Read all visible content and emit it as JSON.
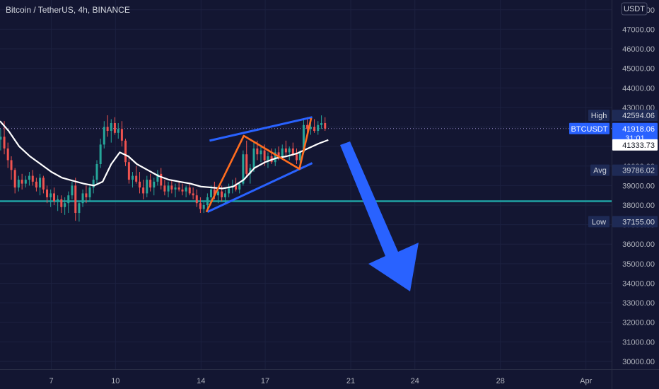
{
  "header": {
    "title": "Bitcoin / TetherUS, 4h, BINANCE",
    "currency": "USDT"
  },
  "chart_data": {
    "type": "candlestick",
    "symbol": "BTCUSDT",
    "interval": "4h",
    "exchange": "BINANCE",
    "ylim": [
      29600,
      48500
    ],
    "y_ticks": [
      "30000.00",
      "31000.00",
      "32000.00",
      "33000.00",
      "34000.00",
      "35000.00",
      "36000.00",
      "37000.00",
      "38000.00",
      "39000.00",
      "40000.00",
      "41000.00",
      "42000.00",
      "43000.00",
      "44000.00",
      "45000.00",
      "46000.00",
      "47000.00",
      "48000.00"
    ],
    "x_ticks": [
      "7",
      "10",
      "14",
      "17",
      "21",
      "24",
      "28",
      "Apr"
    ],
    "x_tick_days": [
      7,
      10,
      14,
      17,
      21,
      24,
      28,
      32
    ],
    "x_range_days": [
      4.6,
      33.2
    ],
    "price_labels": {
      "high": {
        "label": "High",
        "value": "42594.06"
      },
      "last": {
        "label": "BTCUSDT",
        "value": "41918.06",
        "countdown": "31:01"
      },
      "ma": {
        "value": "41333.73"
      },
      "avg": {
        "label": "Avg",
        "value": "39786.02"
      },
      "low": {
        "label": "Low",
        "value": "37155.00"
      }
    },
    "last_price": 41918.06,
    "support_level": 38200,
    "candles": [
      {
        "d": 4.63,
        "o": 41350,
        "h": 41900,
        "l": 40800,
        "c": 41500
      },
      {
        "d": 4.8,
        "o": 41500,
        "h": 42300,
        "l": 40600,
        "c": 40900
      },
      {
        "d": 4.97,
        "o": 40900,
        "h": 41200,
        "l": 39900,
        "c": 40300
      },
      {
        "d": 5.13,
        "o": 40300,
        "h": 40500,
        "l": 39300,
        "c": 39800
      },
      {
        "d": 5.3,
        "o": 39800,
        "h": 39900,
        "l": 38600,
        "c": 38900
      },
      {
        "d": 5.47,
        "o": 38900,
        "h": 39500,
        "l": 38700,
        "c": 39300
      },
      {
        "d": 5.63,
        "o": 39300,
        "h": 39600,
        "l": 38800,
        "c": 39100
      },
      {
        "d": 5.8,
        "o": 39100,
        "h": 39500,
        "l": 38900,
        "c": 39300
      },
      {
        "d": 5.97,
        "o": 39300,
        "h": 39700,
        "l": 39000,
        "c": 39500
      },
      {
        "d": 6.13,
        "o": 39500,
        "h": 39800,
        "l": 39000,
        "c": 39200
      },
      {
        "d": 6.3,
        "o": 39200,
        "h": 39400,
        "l": 38700,
        "c": 38900
      },
      {
        "d": 6.47,
        "o": 38900,
        "h": 39600,
        "l": 38500,
        "c": 39400
      },
      {
        "d": 6.63,
        "o": 39400,
        "h": 39500,
        "l": 38600,
        "c": 38800
      },
      {
        "d": 6.8,
        "o": 38800,
        "h": 39000,
        "l": 38100,
        "c": 38400
      },
      {
        "d": 6.97,
        "o": 38400,
        "h": 38800,
        "l": 37900,
        "c": 38600
      },
      {
        "d": 7.13,
        "o": 38600,
        "h": 38900,
        "l": 38000,
        "c": 38200
      },
      {
        "d": 7.3,
        "o": 38200,
        "h": 38500,
        "l": 37700,
        "c": 38300
      },
      {
        "d": 7.47,
        "o": 38300,
        "h": 38500,
        "l": 37600,
        "c": 37900
      },
      {
        "d": 7.63,
        "o": 37900,
        "h": 38400,
        "l": 37500,
        "c": 38100
      },
      {
        "d": 7.8,
        "o": 38100,
        "h": 38700,
        "l": 37600,
        "c": 38500
      },
      {
        "d": 7.97,
        "o": 38500,
        "h": 39200,
        "l": 38300,
        "c": 39000
      },
      {
        "d": 8.13,
        "o": 39000,
        "h": 39400,
        "l": 37200,
        "c": 37600
      },
      {
        "d": 8.3,
        "o": 37600,
        "h": 38200,
        "l": 37155,
        "c": 38100
      },
      {
        "d": 8.47,
        "o": 38100,
        "h": 38800,
        "l": 37900,
        "c": 38600
      },
      {
        "d": 8.63,
        "o": 38600,
        "h": 39000,
        "l": 38100,
        "c": 38400
      },
      {
        "d": 8.8,
        "o": 38400,
        "h": 39100,
        "l": 38200,
        "c": 38900
      },
      {
        "d": 8.97,
        "o": 38900,
        "h": 39500,
        "l": 38600,
        "c": 39300
      },
      {
        "d": 9.13,
        "o": 39300,
        "h": 40300,
        "l": 39100,
        "c": 40100
      },
      {
        "d": 9.3,
        "o": 40100,
        "h": 41400,
        "l": 39900,
        "c": 41100
      },
      {
        "d": 9.47,
        "o": 41100,
        "h": 42300,
        "l": 40900,
        "c": 42000
      },
      {
        "d": 9.63,
        "o": 42000,
        "h": 42600,
        "l": 41500,
        "c": 41800
      },
      {
        "d": 9.8,
        "o": 41800,
        "h": 42400,
        "l": 41200,
        "c": 42200
      },
      {
        "d": 9.97,
        "o": 42200,
        "h": 42500,
        "l": 41600,
        "c": 41700
      },
      {
        "d": 10.13,
        "o": 41700,
        "h": 42200,
        "l": 41400,
        "c": 41900
      },
      {
        "d": 10.3,
        "o": 41900,
        "h": 42300,
        "l": 41000,
        "c": 41300
      },
      {
        "d": 10.47,
        "o": 41300,
        "h": 41400,
        "l": 40000,
        "c": 40200
      },
      {
        "d": 10.63,
        "o": 40200,
        "h": 40400,
        "l": 39100,
        "c": 39300
      },
      {
        "d": 10.8,
        "o": 39300,
        "h": 39700,
        "l": 38900,
        "c": 39500
      },
      {
        "d": 10.97,
        "o": 39500,
        "h": 40000,
        "l": 39100,
        "c": 39200
      },
      {
        "d": 11.13,
        "o": 39200,
        "h": 39700,
        "l": 38600,
        "c": 38900
      },
      {
        "d": 11.3,
        "o": 38900,
        "h": 39300,
        "l": 38300,
        "c": 38600
      },
      {
        "d": 11.47,
        "o": 38600,
        "h": 39500,
        "l": 38400,
        "c": 39300
      },
      {
        "d": 11.63,
        "o": 39300,
        "h": 39600,
        "l": 38700,
        "c": 38900
      },
      {
        "d": 11.8,
        "o": 38900,
        "h": 39400,
        "l": 38500,
        "c": 39200
      },
      {
        "d": 11.97,
        "o": 39200,
        "h": 39800,
        "l": 39000,
        "c": 39600
      },
      {
        "d": 12.13,
        "o": 39600,
        "h": 39900,
        "l": 38800,
        "c": 39000
      },
      {
        "d": 12.3,
        "o": 39000,
        "h": 39300,
        "l": 38500,
        "c": 38700
      },
      {
        "d": 12.47,
        "o": 38700,
        "h": 39200,
        "l": 38400,
        "c": 39000
      },
      {
        "d": 12.63,
        "o": 39000,
        "h": 39300,
        "l": 38600,
        "c": 38800
      },
      {
        "d": 12.8,
        "o": 38800,
        "h": 39100,
        "l": 38400,
        "c": 38900
      },
      {
        "d": 12.97,
        "o": 38900,
        "h": 39200,
        "l": 38700,
        "c": 38800
      },
      {
        "d": 13.13,
        "o": 38800,
        "h": 39100,
        "l": 38500,
        "c": 38700
      },
      {
        "d": 13.3,
        "o": 38700,
        "h": 39000,
        "l": 38400,
        "c": 38900
      },
      {
        "d": 13.47,
        "o": 38900,
        "h": 39100,
        "l": 38500,
        "c": 38600
      },
      {
        "d": 13.63,
        "o": 38600,
        "h": 38900,
        "l": 38300,
        "c": 38500
      },
      {
        "d": 13.8,
        "o": 38500,
        "h": 38800,
        "l": 37900,
        "c": 38100
      },
      {
        "d": 13.97,
        "o": 38100,
        "h": 38400,
        "l": 37600,
        "c": 37800
      },
      {
        "d": 14.13,
        "o": 37800,
        "h": 38200,
        "l": 37600,
        "c": 38000
      },
      {
        "d": 14.3,
        "o": 38000,
        "h": 38600,
        "l": 37800,
        "c": 38400
      },
      {
        "d": 14.47,
        "o": 38400,
        "h": 39000,
        "l": 38200,
        "c": 38800
      },
      {
        "d": 14.63,
        "o": 38800,
        "h": 39200,
        "l": 38300,
        "c": 38500
      },
      {
        "d": 14.8,
        "o": 38500,
        "h": 38900,
        "l": 38100,
        "c": 38700
      },
      {
        "d": 14.97,
        "o": 38700,
        "h": 39000,
        "l": 38200,
        "c": 38400
      },
      {
        "d": 15.13,
        "o": 38400,
        "h": 38800,
        "l": 38100,
        "c": 38600
      },
      {
        "d": 15.3,
        "o": 38600,
        "h": 39100,
        "l": 38400,
        "c": 38900
      },
      {
        "d": 15.47,
        "o": 38900,
        "h": 39300,
        "l": 38600,
        "c": 39000
      },
      {
        "d": 15.63,
        "o": 39000,
        "h": 39400,
        "l": 38700,
        "c": 38800
      },
      {
        "d": 15.8,
        "o": 38800,
        "h": 39200,
        "l": 38600,
        "c": 39100
      },
      {
        "d": 15.97,
        "o": 39100,
        "h": 40800,
        "l": 39000,
        "c": 40600
      },
      {
        "d": 16.13,
        "o": 40600,
        "h": 41300,
        "l": 39400,
        "c": 39600
      },
      {
        "d": 16.3,
        "o": 39600,
        "h": 40100,
        "l": 39100,
        "c": 39900
      },
      {
        "d": 16.47,
        "o": 39900,
        "h": 41200,
        "l": 39700,
        "c": 40900
      },
      {
        "d": 16.63,
        "o": 40900,
        "h": 41300,
        "l": 40300,
        "c": 40600
      },
      {
        "d": 16.8,
        "o": 40600,
        "h": 41000,
        "l": 40200,
        "c": 40800
      },
      {
        "d": 16.97,
        "o": 40800,
        "h": 41100,
        "l": 40000,
        "c": 40300
      },
      {
        "d": 17.13,
        "o": 40300,
        "h": 40700,
        "l": 39900,
        "c": 40500
      },
      {
        "d": 17.3,
        "o": 40500,
        "h": 40900,
        "l": 40100,
        "c": 40200
      },
      {
        "d": 17.47,
        "o": 40200,
        "h": 40900,
        "l": 40000,
        "c": 40700
      },
      {
        "d": 17.63,
        "o": 40700,
        "h": 41000,
        "l": 40300,
        "c": 40500
      },
      {
        "d": 17.8,
        "o": 40500,
        "h": 41100,
        "l": 40400,
        "c": 40900
      },
      {
        "d": 17.97,
        "o": 40900,
        "h": 41300,
        "l": 40500,
        "c": 40700
      },
      {
        "d": 18.13,
        "o": 40700,
        "h": 41000,
        "l": 40300,
        "c": 40900
      },
      {
        "d": 18.3,
        "o": 40900,
        "h": 41200,
        "l": 40500,
        "c": 40600
      },
      {
        "d": 18.47,
        "o": 40600,
        "h": 40900,
        "l": 40100,
        "c": 40300
      },
      {
        "d": 18.63,
        "o": 40300,
        "h": 40800,
        "l": 40100,
        "c": 40700
      },
      {
        "d": 18.8,
        "o": 40700,
        "h": 42400,
        "l": 40600,
        "c": 42100
      },
      {
        "d": 18.97,
        "o": 42100,
        "h": 42500,
        "l": 41700,
        "c": 41900
      },
      {
        "d": 19.13,
        "o": 41900,
        "h": 42300,
        "l": 41600,
        "c": 42000
      },
      {
        "d": 19.3,
        "o": 42000,
        "h": 42400,
        "l": 41700,
        "c": 41800
      },
      {
        "d": 19.47,
        "o": 41800,
        "h": 42300,
        "l": 41600,
        "c": 42100
      },
      {
        "d": 19.63,
        "o": 42100,
        "h": 42594,
        "l": 41900,
        "c": 42200
      },
      {
        "d": 19.8,
        "o": 42200,
        "h": 42500,
        "l": 41800,
        "c": 41918
      }
    ],
    "moving_average": [
      {
        "d": 4.6,
        "v": 42300
      },
      {
        "d": 5.0,
        "v": 41800
      },
      {
        "d": 5.5,
        "v": 41000
      },
      {
        "d": 6.0,
        "v": 40500
      },
      {
        "d": 6.5,
        "v": 40100
      },
      {
        "d": 7.0,
        "v": 39700
      },
      {
        "d": 7.5,
        "v": 39400
      },
      {
        "d": 8.0,
        "v": 39250
      },
      {
        "d": 8.5,
        "v": 39100
      },
      {
        "d": 9.0,
        "v": 39000
      },
      {
        "d": 9.4,
        "v": 39200
      },
      {
        "d": 9.8,
        "v": 40100
      },
      {
        "d": 10.2,
        "v": 40700
      },
      {
        "d": 10.6,
        "v": 40500
      },
      {
        "d": 11.0,
        "v": 40100
      },
      {
        "d": 11.5,
        "v": 39800
      },
      {
        "d": 12.0,
        "v": 39500
      },
      {
        "d": 12.5,
        "v": 39300
      },
      {
        "d": 13.0,
        "v": 39200
      },
      {
        "d": 13.5,
        "v": 39100
      },
      {
        "d": 14.0,
        "v": 38950
      },
      {
        "d": 14.5,
        "v": 38900
      },
      {
        "d": 15.0,
        "v": 38850
      },
      {
        "d": 15.5,
        "v": 38950
      },
      {
        "d": 16.0,
        "v": 39300
      },
      {
        "d": 16.5,
        "v": 39900
      },
      {
        "d": 17.0,
        "v": 40200
      },
      {
        "d": 17.5,
        "v": 40400
      },
      {
        "d": 18.0,
        "v": 40500
      },
      {
        "d": 18.5,
        "v": 40650
      },
      {
        "d": 19.0,
        "v": 40900
      },
      {
        "d": 19.5,
        "v": 41150
      },
      {
        "d": 19.95,
        "v": 41333.73
      }
    ]
  }
}
